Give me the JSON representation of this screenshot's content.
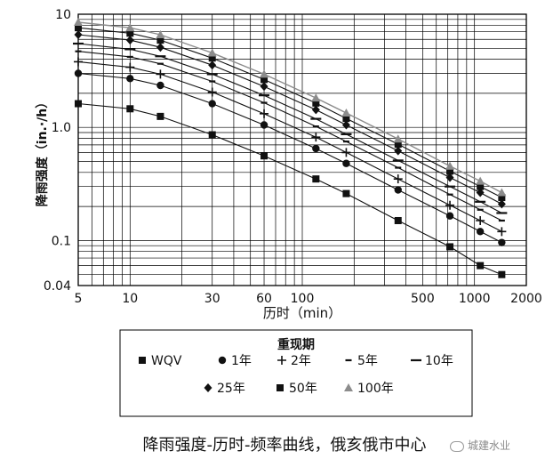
{
  "chart_data": {
    "type": "line",
    "title": "",
    "xlabel": "历时（min）",
    "ylabel": "降雨强度（in.·/h）",
    "x_scale": "log",
    "y_scale": "log",
    "xlim": [
      5,
      2000
    ],
    "ylim": [
      0.04,
      10
    ],
    "x_tick_labels": [
      "5",
      "10",
      "30",
      "60",
      "100",
      "500",
      "1000",
      "2000"
    ],
    "x_tick_values": [
      5,
      10,
      30,
      60,
      100,
      500,
      1000,
      2000
    ],
    "y_tick_labels": [
      "10",
      "1.0",
      "0.1",
      "0.04"
    ],
    "y_tick_values": [
      10,
      1.0,
      0.1,
      0.04
    ],
    "grid": true,
    "legend": {
      "title": "重现期",
      "placement": "below-plot",
      "entries": [
        "WQV",
        "1年",
        "2年",
        "5年",
        "10年",
        "25年",
        "50年",
        "100年"
      ]
    },
    "series": [
      {
        "name": "WQV",
        "marker": "square",
        "color": "#111111",
        "x": [
          5,
          10,
          15,
          30,
          60,
          120,
          180,
          360,
          720,
          1080,
          1440
        ],
        "y": [
          1.62,
          1.46,
          1.25,
          0.86,
          0.56,
          0.35,
          0.26,
          0.15,
          0.088,
          0.06,
          0.05
        ]
      },
      {
        "name": "1年",
        "marker": "circle",
        "color": "#111111",
        "x": [
          5,
          10,
          15,
          30,
          60,
          120,
          180,
          360,
          720,
          1080,
          1440
        ],
        "y": [
          3.0,
          2.7,
          2.35,
          1.62,
          1.05,
          0.65,
          0.48,
          0.28,
          0.165,
          0.12,
          0.096
        ]
      },
      {
        "name": "2年",
        "marker": "plus",
        "color": "#111111",
        "x": [
          5,
          10,
          15,
          30,
          60,
          120,
          180,
          360,
          720,
          1080,
          1440
        ],
        "y": [
          3.8,
          3.4,
          2.95,
          2.05,
          1.32,
          0.82,
          0.6,
          0.35,
          0.205,
          0.15,
          0.12
        ]
      },
      {
        "name": "5年",
        "marker": "dash",
        "color": "#111111",
        "x": [
          5,
          10,
          15,
          30,
          60,
          120,
          180,
          360,
          720,
          1080,
          1440
        ],
        "y": [
          4.7,
          4.2,
          3.65,
          2.55,
          1.65,
          1.02,
          0.75,
          0.44,
          0.255,
          0.187,
          0.15
        ]
      },
      {
        "name": "10年",
        "marker": "longdash",
        "color": "#111111",
        "x": [
          5,
          10,
          15,
          30,
          60,
          120,
          180,
          360,
          720,
          1080,
          1440
        ],
        "y": [
          5.5,
          4.9,
          4.25,
          2.95,
          1.92,
          1.19,
          0.87,
          0.51,
          0.3,
          0.22,
          0.175
        ]
      },
      {
        "name": "25年",
        "marker": "diamond",
        "color": "#111111",
        "x": [
          5,
          10,
          15,
          30,
          60,
          120,
          180,
          360,
          720,
          1080,
          1440
        ],
        "y": [
          6.6,
          5.9,
          5.1,
          3.55,
          2.3,
          1.43,
          1.05,
          0.62,
          0.36,
          0.265,
          0.21
        ]
      },
      {
        "name": "50年",
        "marker": "square",
        "color": "#111111",
        "x": [
          5,
          10,
          15,
          30,
          60,
          120,
          180,
          360,
          720,
          1080,
          1440
        ],
        "y": [
          7.6,
          6.8,
          5.9,
          4.1,
          2.65,
          1.64,
          1.2,
          0.71,
          0.41,
          0.3,
          0.24
        ]
      },
      {
        "name": "100年",
        "marker": "triangle",
        "color": "#8c8c8c",
        "x": [
          5,
          10,
          15,
          30,
          60,
          120,
          180,
          360,
          720,
          1080,
          1440
        ],
        "y": [
          8.5,
          7.6,
          6.6,
          4.55,
          2.95,
          1.82,
          1.34,
          0.79,
          0.455,
          0.335,
          0.265
        ]
      }
    ]
  },
  "caption": "降雨强度-历时-频率曲线，俄亥俄市中心",
  "watermark": "城建水业"
}
